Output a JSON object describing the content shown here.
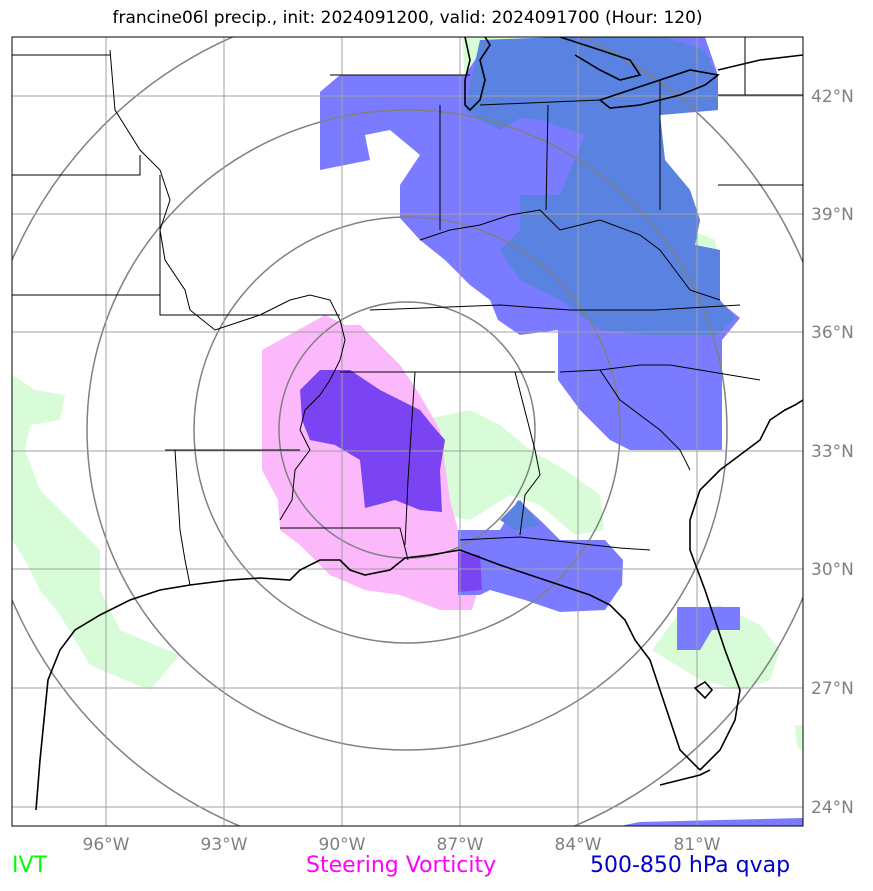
{
  "title": "francine06l precip., init: 2024091200, valid: 2024091700 (Hour: 120)",
  "map": {
    "lon_labels": [
      "96°W",
      "93°W",
      "90°W",
      "87°W",
      "84°W",
      "81°W"
    ],
    "lat_labels": [
      "42°N",
      "39°N",
      "36°N",
      "33°N",
      "30°N",
      "27°N",
      "24°N"
    ]
  },
  "legend": {
    "ivt": {
      "label": "IVT",
      "color": "#00ff00"
    },
    "vorticity": {
      "label": "Steering Vorticity",
      "color": "#ff00ff"
    },
    "qvap": {
      "label": "500-850 hPa qvap",
      "color": "#0000cc"
    }
  },
  "colors": {
    "ivt_fill": "#d8fbd8",
    "vorticity_fill": "#fbb8fb",
    "qvap_fill": "#7b7bff",
    "qvap_dark": "#5a82e0",
    "overlap_fill": "#7a44f2",
    "rings": "#808080",
    "grid": "#a0a0a0"
  }
}
